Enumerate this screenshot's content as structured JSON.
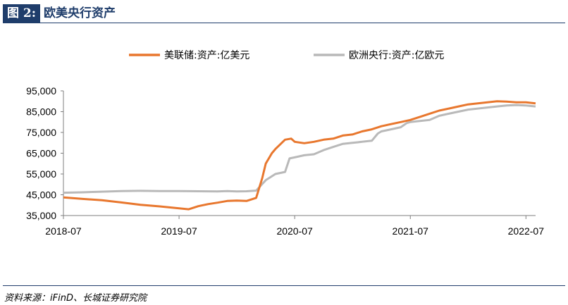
{
  "header": {
    "tag": "图 2:",
    "title": "欧美央行资产"
  },
  "footer": {
    "source": "资料来源：iFinD、长城证券研究院"
  },
  "colors": {
    "fed": "#e8772e",
    "ecb": "#b9b9b9",
    "brand": "#1f3d6b",
    "axis": "#7f7f7f"
  },
  "chart_data": {
    "type": "line",
    "title": "",
    "xlabel": "",
    "ylabel": "",
    "ylim": [
      35000,
      95000
    ],
    "yticks": [
      "95,000",
      "85,000",
      "75,000",
      "65,000",
      "55,000",
      "45,000",
      "35,000"
    ],
    "ytick_values": [
      95000,
      85000,
      75000,
      65000,
      55000,
      45000,
      35000
    ],
    "xticks": [
      "2018-07",
      "2019-07",
      "2020-07",
      "2021-07",
      "2022-07"
    ],
    "xtick_values": [
      "2018-07",
      "2019-07",
      "2020-07",
      "2021-07",
      "2022-07"
    ],
    "xlim": [
      "2018-07",
      "2022-08"
    ],
    "legend_position": "top",
    "grid": false,
    "series": [
      {
        "name": "美联储:资产:亿美元",
        "color": "#e8772e",
        "points": [
          [
            "2018-07",
            43700
          ],
          [
            "2018-09",
            43000
          ],
          [
            "2018-11",
            42400
          ],
          [
            "2019-01",
            41300
          ],
          [
            "2019-03",
            40200
          ],
          [
            "2019-05",
            39400
          ],
          [
            "2019-07",
            38500
          ],
          [
            "2019-08",
            38000
          ],
          [
            "2019-09",
            39500
          ],
          [
            "2019-10",
            40500
          ],
          [
            "2019-11",
            41200
          ],
          [
            "2019-12",
            42000
          ],
          [
            "2020-01",
            42200
          ],
          [
            "2020-02",
            42000
          ],
          [
            "2020-03",
            43500
          ],
          [
            "2020-03-20",
            53000
          ],
          [
            "2020-04",
            60000
          ],
          [
            "2020-04-20",
            65000
          ],
          [
            "2020-05",
            67000
          ],
          [
            "2020-06",
            71500
          ],
          [
            "2020-06-20",
            72000
          ],
          [
            "2020-07",
            70500
          ],
          [
            "2020-08",
            69800
          ],
          [
            "2020-09",
            70500
          ],
          [
            "2020-10",
            71500
          ],
          [
            "2020-11",
            72000
          ],
          [
            "2020-12",
            73500
          ],
          [
            "2021-01",
            74000
          ],
          [
            "2021-02",
            75500
          ],
          [
            "2021-03",
            76500
          ],
          [
            "2021-04",
            78000
          ],
          [
            "2021-05",
            79000
          ],
          [
            "2021-06",
            80000
          ],
          [
            "2021-07",
            81000
          ],
          [
            "2021-08",
            82500
          ],
          [
            "2021-09",
            84000
          ],
          [
            "2021-10",
            85500
          ],
          [
            "2021-11",
            86500
          ],
          [
            "2021-12",
            87500
          ],
          [
            "2022-01",
            88500
          ],
          [
            "2022-02",
            89000
          ],
          [
            "2022-03",
            89500
          ],
          [
            "2022-04",
            90000
          ],
          [
            "2022-05",
            89800
          ],
          [
            "2022-06",
            89500
          ],
          [
            "2022-07",
            89500
          ],
          [
            "2022-08",
            89000
          ]
        ]
      },
      {
        "name": "欧洲央行:资产:亿欧元",
        "color": "#b9b9b9",
        "points": [
          [
            "2018-07",
            46000
          ],
          [
            "2018-09",
            46200
          ],
          [
            "2018-11",
            46500
          ],
          [
            "2019-01",
            46800
          ],
          [
            "2019-03",
            46900
          ],
          [
            "2019-05",
            46800
          ],
          [
            "2019-07",
            46800
          ],
          [
            "2019-09",
            46700
          ],
          [
            "2019-11",
            46600
          ],
          [
            "2019-12",
            46800
          ],
          [
            "2020-01",
            46600
          ],
          [
            "2020-02",
            46700
          ],
          [
            "2020-03",
            47000
          ],
          [
            "2020-04",
            52000
          ],
          [
            "2020-05",
            55000
          ],
          [
            "2020-06",
            56000
          ],
          [
            "2020-06-15",
            62500
          ],
          [
            "2020-07",
            63000
          ],
          [
            "2020-08",
            64000
          ],
          [
            "2020-09",
            64500
          ],
          [
            "2020-10",
            66500
          ],
          [
            "2020-11",
            68000
          ],
          [
            "2020-12",
            69500
          ],
          [
            "2021-01",
            70000
          ],
          [
            "2021-02",
            70500
          ],
          [
            "2021-03",
            71000
          ],
          [
            "2021-03-20",
            74500
          ],
          [
            "2021-04",
            75500
          ],
          [
            "2021-05",
            76500
          ],
          [
            "2021-06",
            77500
          ],
          [
            "2021-06-20",
            79500
          ],
          [
            "2021-07",
            80000
          ],
          [
            "2021-08",
            80500
          ],
          [
            "2021-09",
            81000
          ],
          [
            "2021-10",
            83000
          ],
          [
            "2021-11",
            84000
          ],
          [
            "2021-12",
            85000
          ],
          [
            "2022-01",
            86000
          ],
          [
            "2022-02",
            86500
          ],
          [
            "2022-03",
            87000
          ],
          [
            "2022-04",
            87500
          ],
          [
            "2022-05",
            88000
          ],
          [
            "2022-06",
            88200
          ],
          [
            "2022-07",
            88000
          ],
          [
            "2022-08",
            87500
          ]
        ]
      }
    ]
  }
}
